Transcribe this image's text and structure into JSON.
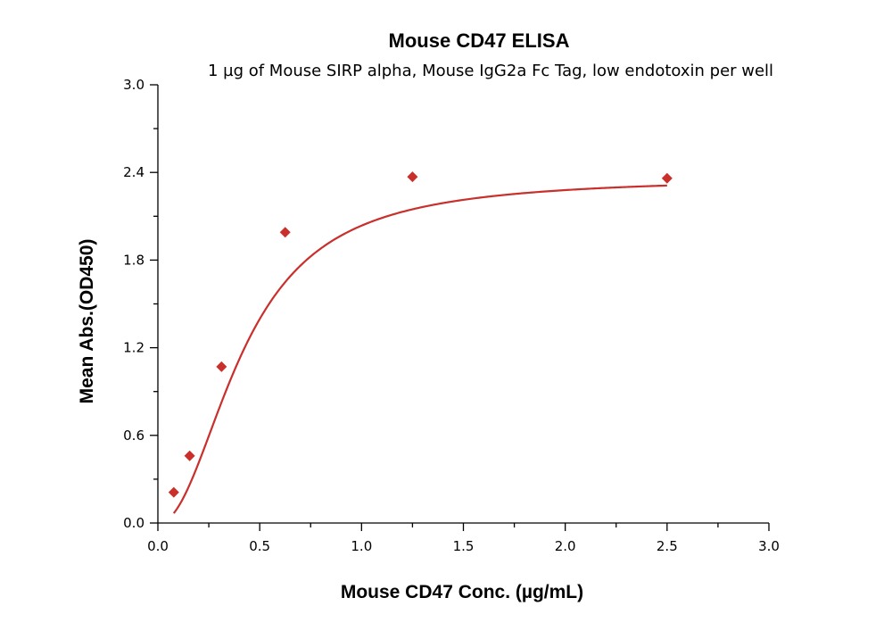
{
  "chart_data": {
    "type": "scatter",
    "title": "Mouse CD47 ELISA",
    "subtitle": "1 µg of Mouse SIRP alpha, Mouse IgG2a Fc Tag, low endotoxin per well",
    "xlabel": "Mouse CD47 Conc. (µg/mL)",
    "ylabel": "Mean Abs.(OD450)",
    "xlim": [
      0,
      3.0
    ],
    "ylim": [
      0,
      3.0
    ],
    "x_ticks": [
      "0.0",
      "0.5",
      "1.0",
      "1.5",
      "2.0",
      "2.5",
      "3.0"
    ],
    "y_ticks": [
      "0.0",
      "0.6",
      "1.2",
      "1.8",
      "2.4",
      "3.0"
    ],
    "grid": false,
    "color": "#c9302c",
    "marker": "diamond",
    "series": [
      {
        "x": [
          0.078,
          0.156,
          0.3125,
          0.625,
          1.25,
          2.5
        ],
        "y": [
          0.21,
          0.46,
          1.07,
          1.99,
          2.37,
          2.36
        ],
        "fit": "4PL"
      }
    ]
  }
}
